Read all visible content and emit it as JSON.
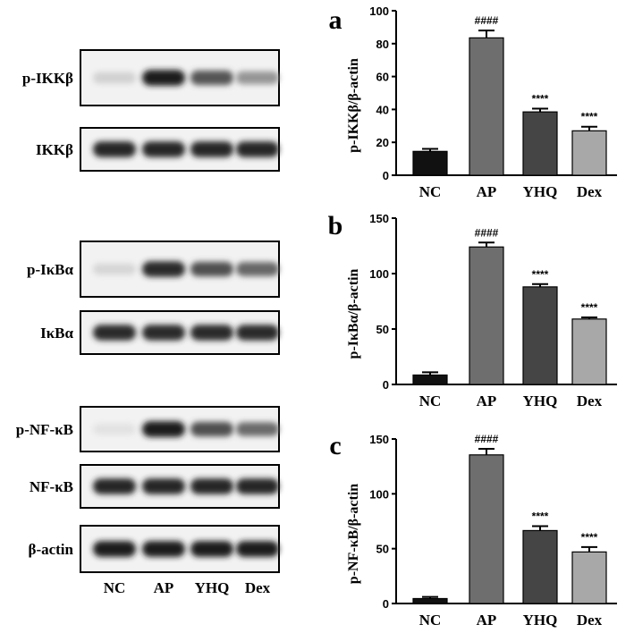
{
  "blots": {
    "lanes": [
      "NC",
      "AP",
      "YHQ",
      "Dex"
    ],
    "rows": [
      {
        "label": "p-IKKβ",
        "intensity": [
          0.12,
          0.95,
          0.7,
          0.4
        ]
      },
      {
        "label": "IKKβ",
        "intensity": [
          0.92,
          0.92,
          0.92,
          0.92
        ]
      },
      {
        "label": "p-IκBα",
        "intensity": [
          0.1,
          0.9,
          0.72,
          0.62
        ]
      },
      {
        "label": "IκBα",
        "intensity": [
          0.9,
          0.9,
          0.9,
          0.9
        ]
      },
      {
        "label": "p-NF-κB",
        "intensity": [
          0.04,
          0.95,
          0.72,
          0.6
        ]
      },
      {
        "label": "NF-κB",
        "intensity": [
          0.92,
          0.92,
          0.92,
          0.92
        ]
      },
      {
        "label": "β-actin",
        "intensity": [
          0.96,
          0.96,
          0.96,
          0.96
        ]
      }
    ]
  },
  "chart_data": [
    {
      "type": "bar",
      "panel": "a",
      "ylabel": "p-IKKβ/β-actin",
      "categories": [
        "NC",
        "AP",
        "YHQ",
        "Dex"
      ],
      "values": [
        14.5,
        83.5,
        38.5,
        27
      ],
      "errors": [
        1.5,
        4.5,
        2,
        2.5
      ],
      "significance": [
        "",
        "####",
        "****",
        "****"
      ],
      "ylim": [
        0,
        100
      ],
      "yticks": [
        0,
        20,
        40,
        60,
        80,
        100
      ],
      "colors": [
        "#111111",
        "#6e6e6e",
        "#454545",
        "#a8a8a8"
      ]
    },
    {
      "type": "bar",
      "panel": "b",
      "ylabel": "p-IκBα/β-actin",
      "categories": [
        "NC",
        "AP",
        "YHQ",
        "Dex"
      ],
      "values": [
        8.5,
        124,
        88,
        59
      ],
      "errors": [
        2.5,
        4,
        2.5,
        1.5
      ],
      "significance": [
        "",
        "####",
        "****",
        "****"
      ],
      "ylim": [
        0,
        150
      ],
      "yticks": [
        0,
        50,
        100,
        150
      ],
      "colors": [
        "#111111",
        "#6e6e6e",
        "#454545",
        "#a8a8a8"
      ]
    },
    {
      "type": "bar",
      "panel": "c",
      "ylabel": "p-NF-κB/β-actin",
      "categories": [
        "NC",
        "AP",
        "YHQ",
        "Dex"
      ],
      "values": [
        4.5,
        135.5,
        66.5,
        47
      ],
      "errors": [
        1.5,
        5.5,
        4,
        4.5
      ],
      "significance": [
        "",
        "####",
        "****",
        "****"
      ],
      "ylim": [
        0,
        150
      ],
      "yticks": [
        0,
        50,
        100,
        150
      ],
      "colors": [
        "#111111",
        "#6e6e6e",
        "#454545",
        "#a8a8a8"
      ]
    }
  ]
}
